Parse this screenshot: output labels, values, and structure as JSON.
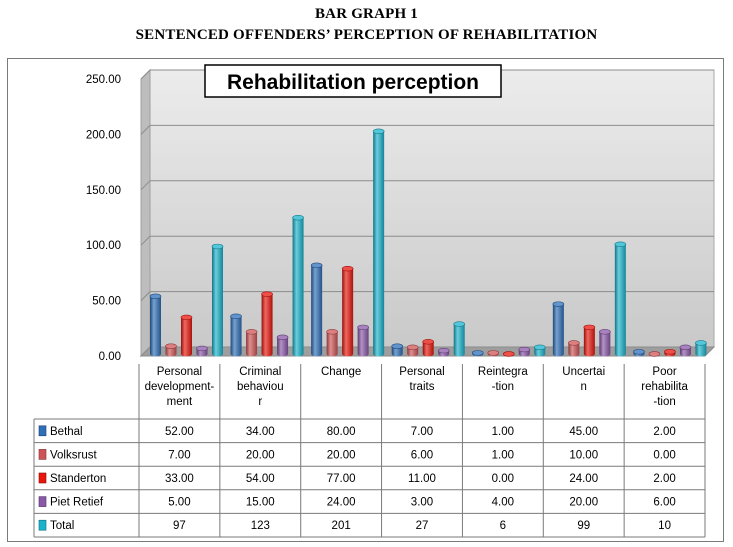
{
  "document": {
    "heading_line1": "BAR GRAPH 1",
    "heading_line2": "SENTENCED OFFENDERS’ PERCEPTION OF REHABILITATION"
  },
  "chart_data": {
    "type": "bar",
    "title": "Rehabilitation perception",
    "categories": [
      [
        "Personal",
        "development-",
        "ment"
      ],
      [
        "Criminal",
        "behaviou",
        "r"
      ],
      [
        "Change"
      ],
      [
        "Personal",
        "traits"
      ],
      [
        "Reintegra",
        "-tion"
      ],
      [
        "Uncertai",
        "n"
      ],
      [
        "Poor",
        "rehabilita",
        "-tion"
      ]
    ],
    "y_tick_labels": [
      "0.00",
      "50.00",
      "100.00",
      "150.00",
      "200.00",
      "250.00"
    ],
    "ylim": [
      0,
      250
    ],
    "y_step": 50,
    "grid": true,
    "legend_placement": "data-table-left",
    "series": [
      {
        "name": "Bethal",
        "color": "#2e6fb8",
        "values": [
          52,
          34,
          80,
          7,
          1,
          45,
          2
        ],
        "labels": [
          "52.00",
          "34.00",
          "80.00",
          "7.00",
          "1.00",
          "45.00",
          "2.00"
        ]
      },
      {
        "name": "Volksrust",
        "color": "#cf5456",
        "values": [
          7,
          20,
          20,
          6,
          1,
          10,
          0
        ],
        "labels": [
          "7.00",
          "20.00",
          "20.00",
          "6.00",
          "1.00",
          "10.00",
          "0.00"
        ]
      },
      {
        "name": "Standerton",
        "color": "#e8160c",
        "values": [
          33,
          54,
          77,
          11,
          0,
          24,
          2
        ],
        "labels": [
          "33.00",
          "54.00",
          "77.00",
          "11.00",
          "0.00",
          "24.00",
          "2.00"
        ]
      },
      {
        "name": "Piet Retief",
        "color": "#8a58a8",
        "values": [
          5,
          15,
          24,
          3,
          4,
          20,
          6
        ],
        "labels": [
          "5.00",
          "15.00",
          "24.00",
          "3.00",
          "4.00",
          "20.00",
          "6.00"
        ]
      },
      {
        "name": "Total",
        "color": "#19b3cc",
        "values": [
          97,
          123,
          201,
          27,
          6,
          99,
          10
        ],
        "labels": [
          "97",
          "123",
          "201",
          "27",
          "6",
          "99",
          "10"
        ]
      }
    ]
  }
}
